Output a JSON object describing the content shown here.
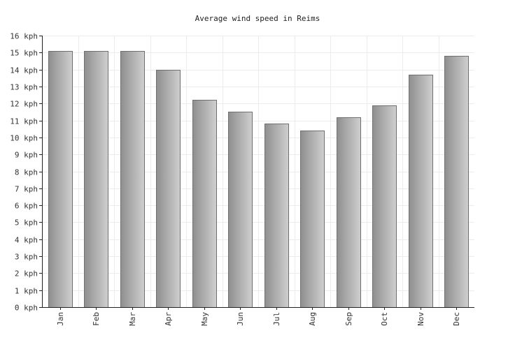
{
  "chart_data": {
    "type": "bar",
    "title": "Average wind speed in Reims",
    "categories": [
      "Jan",
      "Feb",
      "Mar",
      "Apr",
      "May",
      "Jun",
      "Jul",
      "Aug",
      "Sep",
      "Oct",
      "Nov",
      "Dec"
    ],
    "values": [
      15.1,
      15.1,
      15.1,
      14.0,
      12.2,
      11.5,
      10.8,
      10.4,
      11.2,
      11.9,
      13.7,
      14.8
    ],
    "unit": "kph",
    "ylim": [
      0,
      16
    ],
    "yticks": [
      "0 kph",
      "1 kph",
      "2 kph",
      "3 kph",
      "4 kph",
      "5 kph",
      "6 kph",
      "7 kph",
      "8 kph",
      "9 kph",
      "10 kph",
      "11 kph",
      "12 kph",
      "13 kph",
      "14 kph",
      "15 kph",
      "16 kph"
    ],
    "grid": true,
    "legend": "none",
    "colors": {
      "bar_dark": "#8f8f8f",
      "bar_light": "#cfcfcf",
      "bar_edge": "#6f6f6f",
      "grid": "#ececec",
      "axis": "#222222"
    }
  }
}
